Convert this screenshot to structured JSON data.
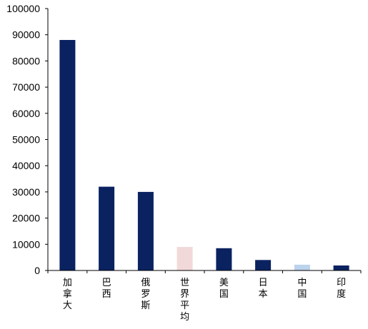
{
  "chart_data": {
    "type": "bar",
    "title": "",
    "xlabel": "",
    "ylabel": "",
    "ylim": [
      0,
      100000
    ],
    "yticks": [
      0,
      10000,
      20000,
      30000,
      40000,
      50000,
      60000,
      70000,
      80000,
      90000,
      100000
    ],
    "ytick_labels": [
      "0",
      "10000",
      "20000",
      "30000",
      "40000",
      "50000",
      "60000",
      "70000",
      "80000",
      "90000",
      "100000"
    ],
    "grid": false,
    "legend": "none",
    "categories": [
      "加拿大",
      "巴西",
      "俄罗斯",
      "世界平均",
      "美国",
      "日本",
      "中国",
      "印度"
    ],
    "values": [
      88000,
      32000,
      30000,
      9000,
      8500,
      4000,
      2200,
      1900
    ],
    "bar_colors": [
      "#0a2260",
      "#0a2260",
      "#0a2260",
      "#f2d9d9",
      "#0a2260",
      "#0a2260",
      "#bcd3ec",
      "#0a2260"
    ],
    "axis_color": "#000000",
    "tick_label_color": "#000000"
  }
}
